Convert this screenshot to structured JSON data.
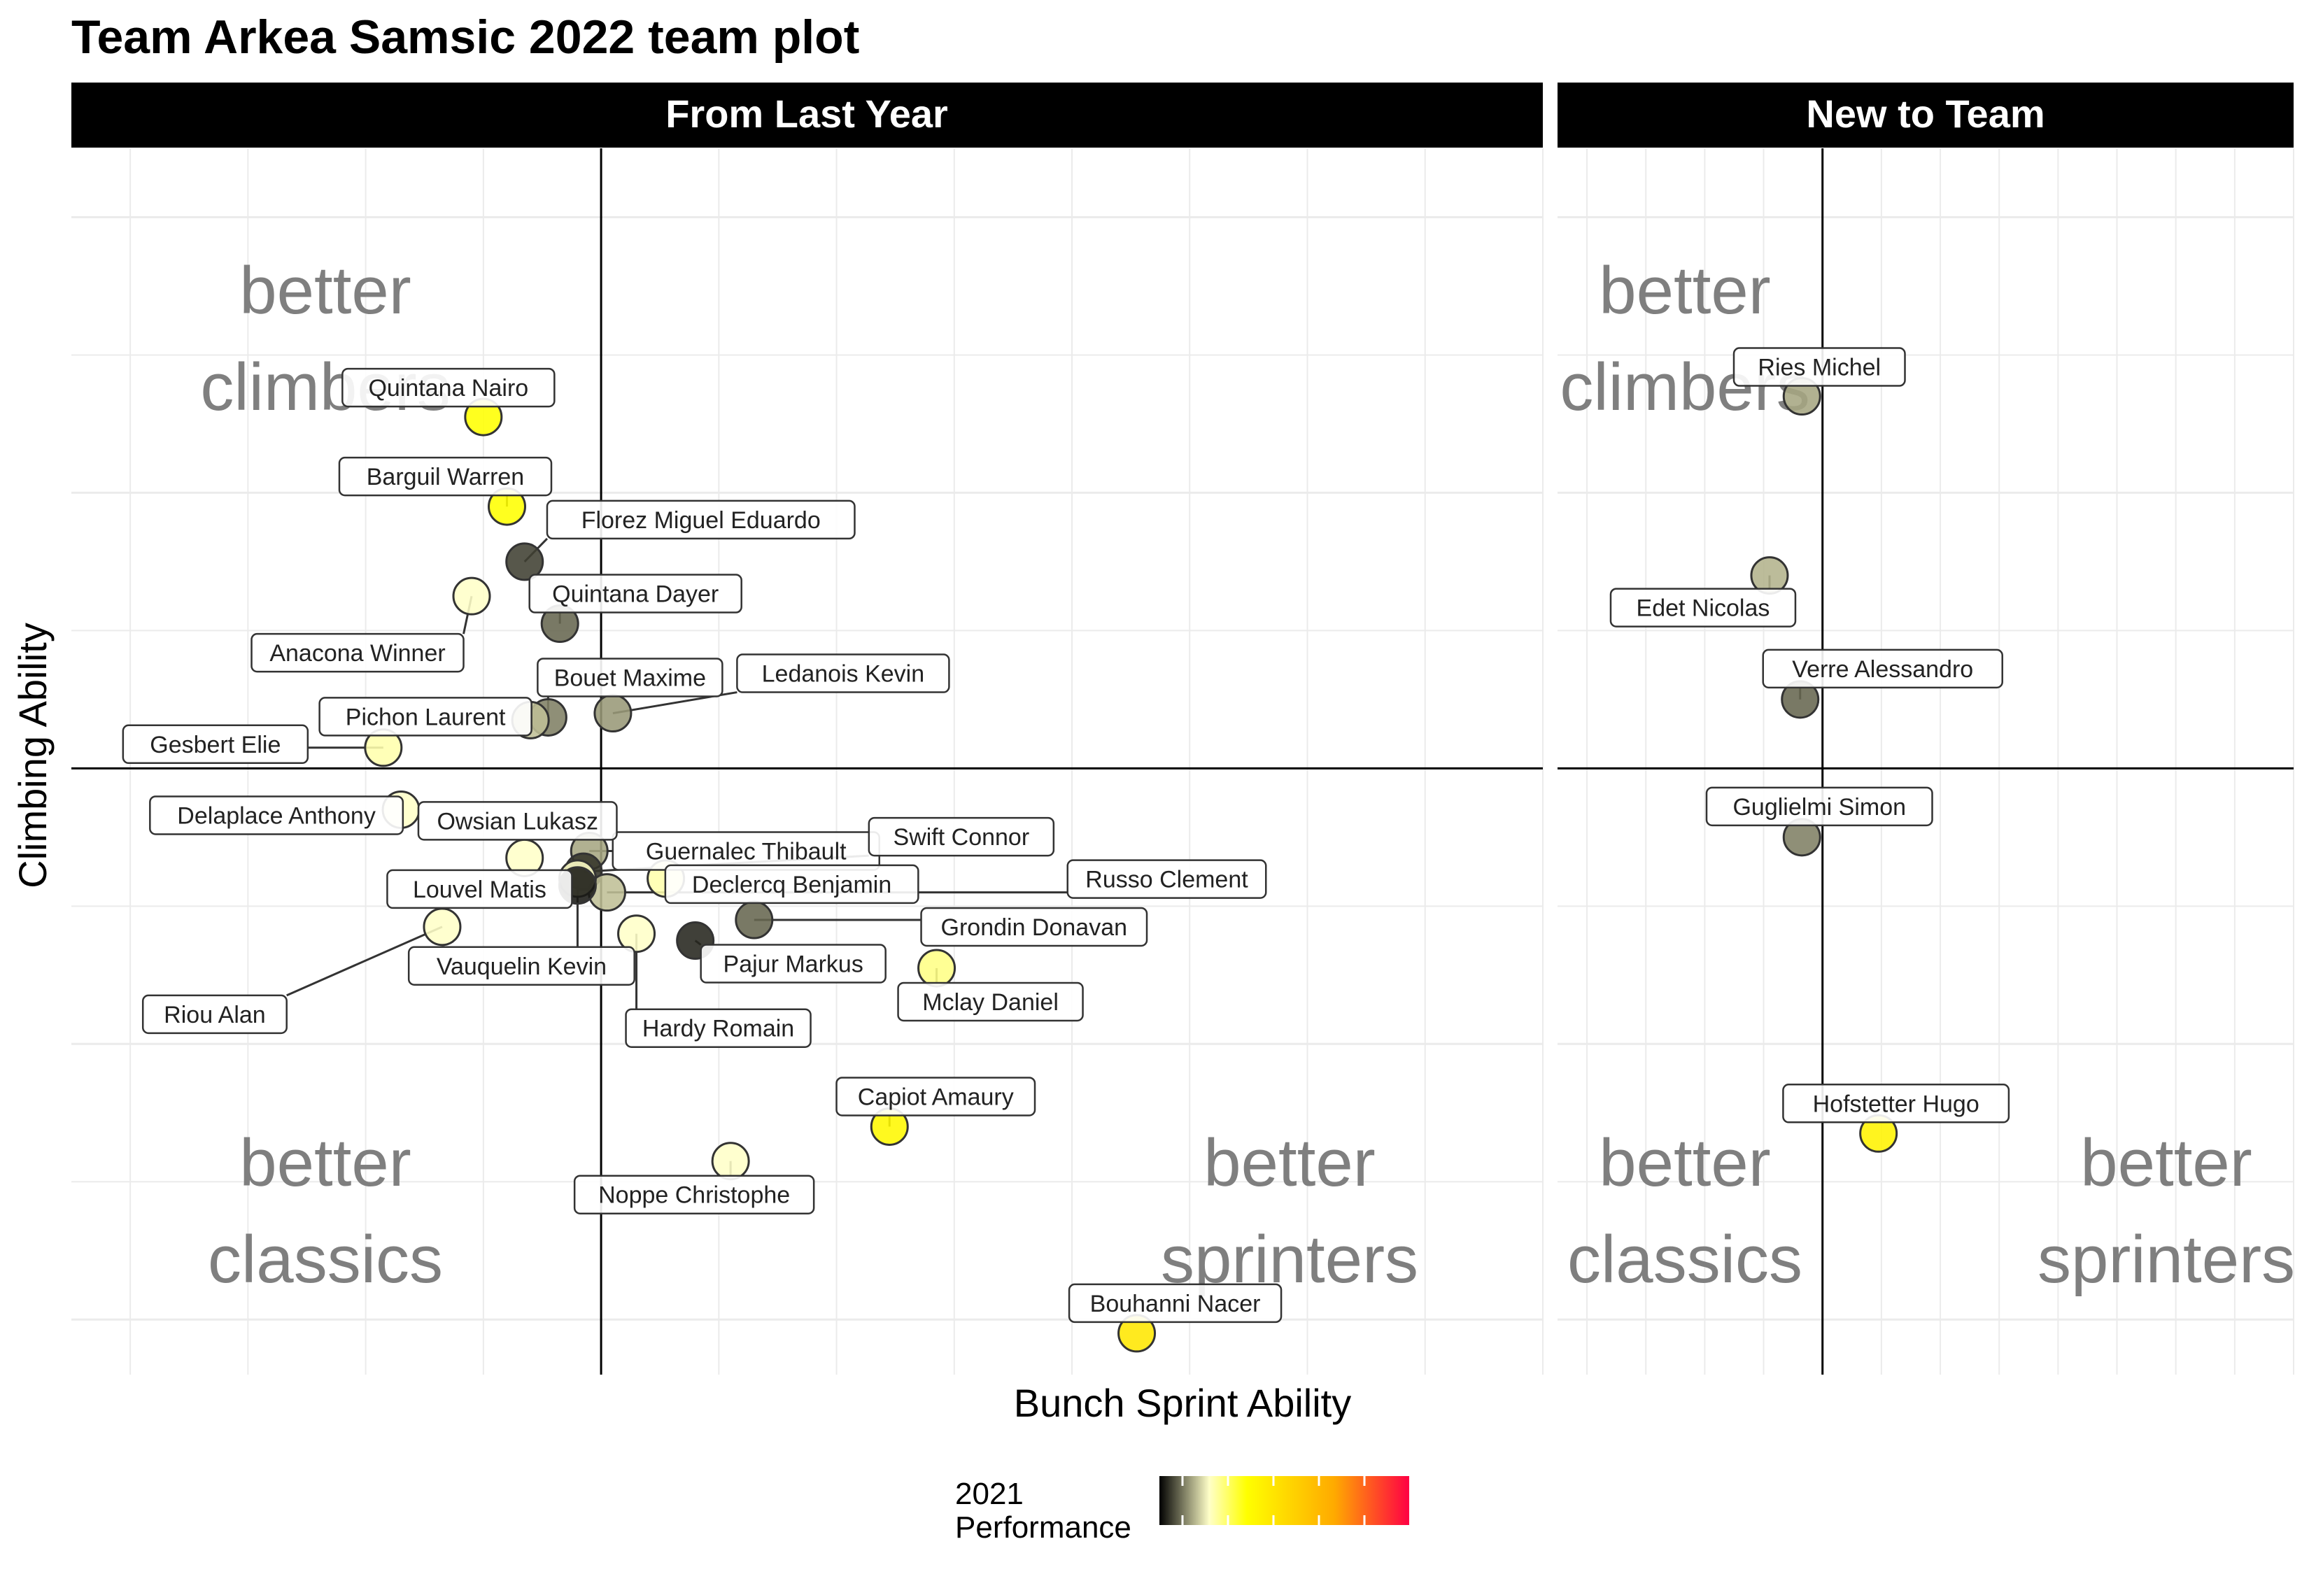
{
  "title": "Team Arkea Samsic 2022 team plot",
  "colors": {
    "strip_bg": "#000000",
    "strip_text": "#ffffff",
    "grid": "#ebebeb",
    "quadrant_text": "#7f7f7f",
    "gradient": [
      "#000000",
      "#ffffc8",
      "#ffff00",
      "#ffaa00",
      "#ff0044"
    ]
  },
  "chart_data": {
    "type": "scatter",
    "xlabel": "Bunch Sprint Ability",
    "ylabel": "Climbing Ability",
    "xlim": [
      -4.5,
      8.0
    ],
    "ylim": [
      -4.4,
      4.5
    ],
    "grid": true,
    "reference_lines": {
      "x": 0,
      "y": 0
    },
    "legend": {
      "title_line1": "2021",
      "title_line2": "Performance",
      "type": "colorbar",
      "position": "bottom"
    },
    "quadrant_labels": {
      "top_left": [
        "better",
        "climbers"
      ],
      "bottom_left": [
        "better",
        "classics"
      ],
      "bottom_right": [
        "better",
        "sprinters"
      ]
    },
    "facets": [
      {
        "name": "From Last Year",
        "points": [
          {
            "name": "Quintana Nairo",
            "x": -1.0,
            "y": 2.55,
            "perf": 0.35
          },
          {
            "name": "Barguil Warren",
            "x": -0.8,
            "y": 1.9,
            "perf": 0.35
          },
          {
            "name": "Florez Miguel Eduardo",
            "x": -0.65,
            "y": 1.5,
            "perf": 0.05
          },
          {
            "name": "Anacona Winner",
            "x": -1.1,
            "y": 1.25,
            "perf": 0.2
          },
          {
            "name": "Quintana Dayer",
            "x": -0.35,
            "y": 1.05,
            "perf": 0.08
          },
          {
            "name": "Bouet Maxime",
            "x": -0.45,
            "y": 0.37,
            "perf": 0.1
          },
          {
            "name": "Ledanois Kevin",
            "x": 0.1,
            "y": 0.4,
            "perf": 0.12
          },
          {
            "name": "Pichon Laurent",
            "x": -0.6,
            "y": 0.35,
            "perf": 0.15
          },
          {
            "name": "Gesbert Elie",
            "x": -1.85,
            "y": 0.15,
            "perf": 0.22
          },
          {
            "name": "Guernalec Thibault",
            "x": -0.1,
            "y": -0.6,
            "perf": 0.13
          },
          {
            "name": "Delaplace Anthony",
            "x": -1.7,
            "y": -0.3,
            "perf": 0.2
          },
          {
            "name": "Owsian Lukasz",
            "x": -0.65,
            "y": -0.65,
            "perf": 0.2
          },
          {
            "name": "Swift Connor",
            "x": -0.15,
            "y": -0.75,
            "perf": 0.04
          },
          {
            "name": "Russo Clement",
            "x": 0.05,
            "y": -0.9,
            "perf": 0.15
          },
          {
            "name": "Declercq Benjamin",
            "x": 0.55,
            "y": -0.8,
            "perf": 0.22
          },
          {
            "name": "Louvel Matis",
            "x": -0.2,
            "y": -0.8,
            "perf": 0.2
          },
          {
            "name": "Grondin Donavan",
            "x": 1.3,
            "y": -1.1,
            "perf": 0.08
          },
          {
            "name": "Riou Alan",
            "x": -1.35,
            "y": -1.15,
            "perf": 0.2
          },
          {
            "name": "Vauquelin Kevin",
            "x": -0.2,
            "y": -0.85,
            "perf": 0.02
          },
          {
            "name": "Pajur Markus",
            "x": 0.8,
            "y": -1.25,
            "perf": 0.03
          },
          {
            "name": "Mclay Daniel",
            "x": 2.85,
            "y": -1.45,
            "perf": 0.25
          },
          {
            "name": "Hardy Romain",
            "x": 0.3,
            "y": -1.2,
            "perf": 0.2
          },
          {
            "name": "Capiot Amaury",
            "x": 2.45,
            "y": -2.6,
            "perf": 0.38
          },
          {
            "name": "Noppe Christophe",
            "x": 1.1,
            "y": -2.85,
            "perf": 0.2
          },
          {
            "name": "Bouhanni Nacer",
            "x": 4.55,
            "y": -4.1,
            "perf": 0.45
          }
        ]
      },
      {
        "name": "New to Team",
        "points": [
          {
            "name": "Ries Michel",
            "x": -0.35,
            "y": 2.7,
            "perf": 0.13
          },
          {
            "name": "Edet Nicolas",
            "x": -0.9,
            "y": 1.4,
            "perf": 0.14
          },
          {
            "name": "Verre Alessandro",
            "x": -0.38,
            "y": 0.5,
            "perf": 0.08
          },
          {
            "name": "Guglielmi Simon",
            "x": -0.35,
            "y": -0.5,
            "perf": 0.1
          },
          {
            "name": "Hofstetter Hugo",
            "x": 0.95,
            "y": -2.65,
            "perf": 0.4
          }
        ]
      }
    ]
  }
}
